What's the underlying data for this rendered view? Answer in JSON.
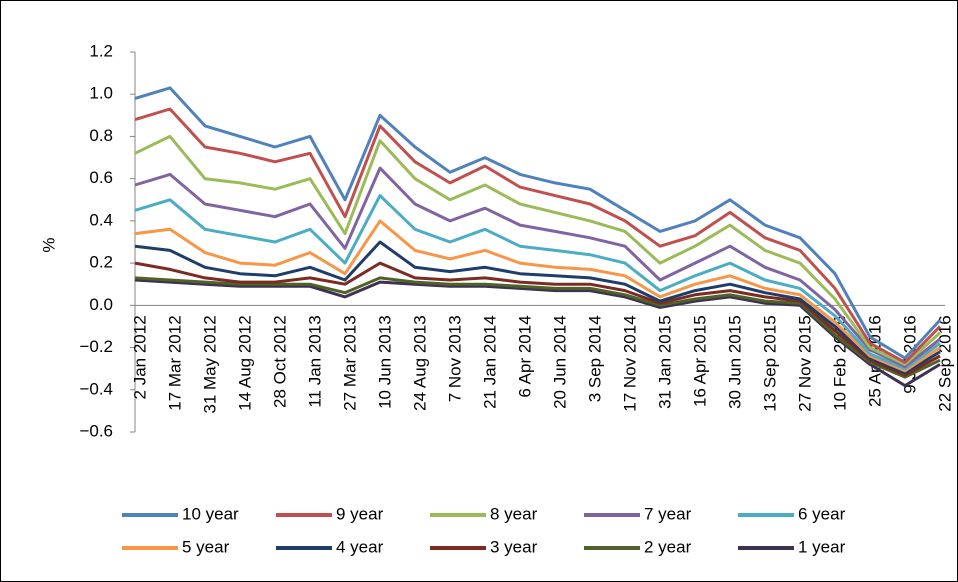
{
  "chart_data": {
    "type": "line",
    "y_label": "%",
    "categories": [
      "2 Jan 2012",
      "17 Mar 2012",
      "31 May 2012",
      "14 Aug 2012",
      "28 Oct 2012",
      "11 Jan 2013",
      "27 Mar 2013",
      "10 Jun 2013",
      "24 Aug 2013",
      "7 Nov 2013",
      "21 Jan 2014",
      "6 Apr 2014",
      "20 Jun 2014",
      "3 Sep 2014",
      "17 Nov 2014",
      "31 Jan 2015",
      "16 Apr 2015",
      "30 Jun 2015",
      "13 Sep 2015",
      "27 Nov 2015",
      "10 Feb 2016",
      "25 Apr 2016",
      "9 Jul 2016",
      "22 Sep 2016"
    ],
    "ylim": [
      -0.6,
      1.2
    ],
    "yticks": [
      {
        "value": -0.6,
        "label": "−0.6"
      },
      {
        "value": -0.4,
        "label": "−0.4"
      },
      {
        "value": -0.2,
        "label": "−0.2"
      },
      {
        "value": 0,
        "label": "0.0"
      },
      0.2,
      0.4,
      0.6,
      0.8,
      {
        "value": 1,
        "label": "1.0"
      },
      1.2
    ],
    "grid": false,
    "series": [
      {
        "name": "10 year",
        "color": "#4f81bd",
        "values": [
          0.98,
          1.03,
          0.85,
          0.8,
          0.75,
          0.8,
          0.5,
          0.9,
          0.75,
          0.63,
          0.7,
          0.62,
          0.58,
          0.55,
          0.45,
          0.35,
          0.4,
          0.5,
          0.38,
          0.32,
          0.15,
          -0.15,
          -0.25,
          -0.07
        ]
      },
      {
        "name": "9 year",
        "color": "#c0504d",
        "values": [
          0.88,
          0.93,
          0.75,
          0.72,
          0.68,
          0.72,
          0.42,
          0.85,
          0.68,
          0.58,
          0.66,
          0.56,
          0.52,
          0.48,
          0.4,
          0.28,
          0.33,
          0.44,
          0.32,
          0.26,
          0.08,
          -0.18,
          -0.27,
          -0.1
        ]
      },
      {
        "name": "8 year",
        "color": "#9bbb59",
        "values": [
          0.72,
          0.8,
          0.6,
          0.58,
          0.55,
          0.6,
          0.34,
          0.78,
          0.6,
          0.5,
          0.57,
          0.48,
          0.44,
          0.4,
          0.35,
          0.2,
          0.28,
          0.38,
          0.26,
          0.2,
          0.03,
          -0.2,
          -0.28,
          -0.13
        ]
      },
      {
        "name": "7 year",
        "color": "#8064a2",
        "values": [
          0.57,
          0.62,
          0.48,
          0.45,
          0.42,
          0.48,
          0.27,
          0.65,
          0.48,
          0.4,
          0.46,
          0.38,
          0.35,
          0.32,
          0.28,
          0.12,
          0.2,
          0.28,
          0.18,
          0.12,
          -0.02,
          -0.21,
          -0.29,
          -0.16
        ]
      },
      {
        "name": "6 year",
        "color": "#4bacc6",
        "values": [
          0.45,
          0.5,
          0.36,
          0.33,
          0.3,
          0.36,
          0.2,
          0.52,
          0.36,
          0.3,
          0.36,
          0.28,
          0.26,
          0.24,
          0.2,
          0.07,
          0.14,
          0.2,
          0.12,
          0.08,
          -0.05,
          -0.23,
          -0.3,
          -0.18
        ]
      },
      {
        "name": "5 year",
        "color": "#f79646",
        "values": [
          0.34,
          0.36,
          0.25,
          0.2,
          0.19,
          0.25,
          0.15,
          0.4,
          0.26,
          0.22,
          0.26,
          0.2,
          0.18,
          0.17,
          0.14,
          0.04,
          0.1,
          0.14,
          0.08,
          0.05,
          -0.08,
          -0.24,
          -0.31,
          -0.2
        ]
      },
      {
        "name": "4 year",
        "color": "#1f3d6b",
        "values": [
          0.28,
          0.26,
          0.18,
          0.15,
          0.14,
          0.18,
          0.12,
          0.3,
          0.18,
          0.16,
          0.18,
          0.15,
          0.14,
          0.13,
          0.1,
          0.02,
          0.07,
          0.1,
          0.06,
          0.03,
          -0.1,
          -0.25,
          -0.32,
          -0.22
        ]
      },
      {
        "name": "3 year",
        "color": "#7b2c22",
        "values": [
          0.2,
          0.17,
          0.13,
          0.11,
          0.11,
          0.13,
          0.1,
          0.2,
          0.13,
          0.12,
          0.13,
          0.11,
          0.1,
          0.1,
          0.07,
          0.01,
          0.05,
          0.07,
          0.04,
          0.02,
          -0.12,
          -0.26,
          -0.33,
          -0.24
        ]
      },
      {
        "name": "2 year",
        "color": "#4f6228",
        "values": [
          0.13,
          0.12,
          0.11,
          0.1,
          0.1,
          0.1,
          0.06,
          0.13,
          0.11,
          0.1,
          0.1,
          0.09,
          0.08,
          0.08,
          0.05,
          0.0,
          0.03,
          0.05,
          0.02,
          0.01,
          -0.14,
          -0.27,
          -0.34,
          -0.26
        ]
      },
      {
        "name": "1 year",
        "color": "#3f3151",
        "values": [
          0.12,
          0.11,
          0.1,
          0.09,
          0.09,
          0.09,
          0.04,
          0.11,
          0.1,
          0.09,
          0.09,
          0.08,
          0.07,
          0.07,
          0.04,
          -0.01,
          0.02,
          0.04,
          0.01,
          0.0,
          -0.15,
          -0.28,
          -0.38,
          -0.28
        ]
      }
    ]
  }
}
